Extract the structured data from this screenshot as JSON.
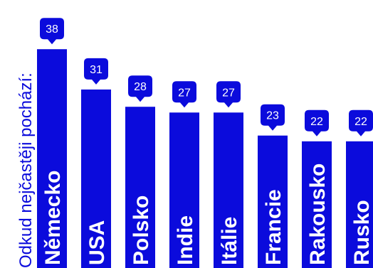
{
  "chart_data": {
    "type": "bar",
    "ylabel": "Odkud nejčastěji pochází:",
    "categories": [
      "Německo",
      "USA",
      "Polsko",
      "Indie",
      "Itálie",
      "Francie",
      "Rakousko",
      "Rusko"
    ],
    "values": [
      38,
      31,
      28,
      27,
      27,
      23,
      22,
      22
    ],
    "ylim": [
      0,
      40
    ],
    "grid": false,
    "legend": "none",
    "colors": {
      "bar": "#0b0bdc",
      "label": "#ffffff",
      "axis_title": "#0b0bdc"
    }
  }
}
